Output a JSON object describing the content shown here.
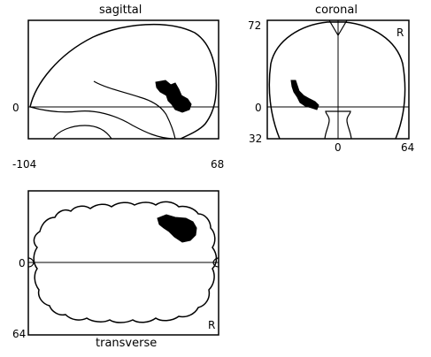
{
  "figure": {
    "colors": {
      "background": "#ffffff",
      "ink": "#000000"
    },
    "sagittal": {
      "title": "sagittal",
      "origin_tick": "0",
      "x_min": "-104",
      "x_max": "68"
    },
    "coronal": {
      "title": "coronal",
      "y_top": "72",
      "origin_tick": "0",
      "y_bottom": "32",
      "x_zero": "0",
      "x_max": "64",
      "side_marker": "R"
    },
    "transverse": {
      "title": "transverse",
      "origin_tick": "0",
      "y_bottom": "64",
      "side_marker": "R"
    }
  }
}
